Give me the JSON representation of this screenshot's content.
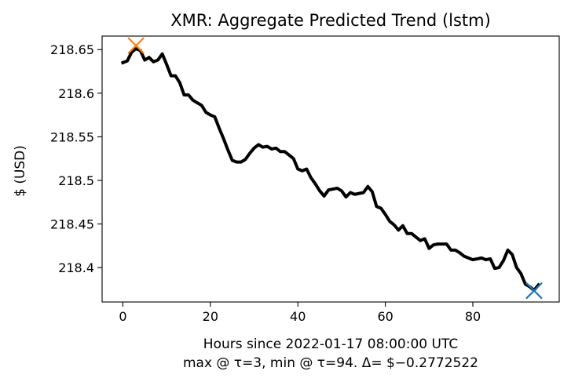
{
  "chart_data": {
    "type": "line",
    "title": "XMR: Aggregate Predicted Trend (lstm)",
    "xlabel": "Hours since 2022-01-17 08:00:00 UTC",
    "xlabel2": "max @ τ=3, min @ τ=94. Δ= $−0.2772522",
    "ylabel": "$ (USD)",
    "xlim": [
      -4.75,
      99.75
    ],
    "ylim": [
      218.3605,
      218.6655
    ],
    "xticks": [
      0,
      20,
      40,
      60,
      80
    ],
    "xtick_labels": [
      "0",
      "20",
      "40",
      "60",
      "80"
    ],
    "yticks": [
      218.4,
      218.45,
      218.5,
      218.55,
      218.6,
      218.65
    ],
    "ytick_labels": [
      "218.4",
      "218.45",
      "218.5",
      "218.55",
      "218.6",
      "218.65"
    ],
    "series": [
      {
        "color": "#000000",
        "x": [
          0,
          1,
          2,
          3,
          4,
          5,
          6,
          7,
          8,
          9,
          10,
          11,
          12,
          13,
          14,
          15,
          16,
          17,
          18,
          19,
          20,
          21,
          22,
          23,
          24,
          25,
          26,
          27,
          28,
          29,
          30,
          31,
          32,
          33,
          34,
          35,
          36,
          37,
          38,
          39,
          40,
          41,
          42,
          43,
          44,
          45,
          46,
          47,
          48,
          49,
          50,
          51,
          52,
          53,
          54,
          55,
          56,
          57,
          58,
          59,
          60,
          61,
          62,
          63,
          64,
          65,
          66,
          67,
          68,
          69,
          70,
          71,
          72,
          73,
          74,
          75,
          76,
          77,
          78,
          79,
          80,
          81,
          82,
          83,
          84,
          85,
          86,
          87,
          88,
          89,
          90,
          91,
          92,
          93,
          94,
          95
        ],
        "y": [
          218.635,
          218.637,
          218.647,
          218.651,
          218.649,
          218.638,
          218.641,
          218.636,
          218.638,
          218.645,
          218.633,
          218.62,
          218.62,
          218.612,
          218.598,
          218.598,
          218.592,
          218.589,
          218.586,
          218.578,
          218.575,
          218.573,
          218.56,
          218.548,
          218.535,
          218.523,
          218.521,
          218.521,
          218.524,
          218.531,
          218.537,
          218.541,
          218.538,
          218.539,
          218.536,
          218.537,
          218.533,
          218.533,
          218.529,
          218.525,
          218.513,
          218.511,
          218.513,
          218.503,
          218.496,
          218.488,
          218.482,
          218.489,
          218.49,
          218.491,
          218.488,
          218.481,
          218.486,
          218.484,
          218.485,
          218.486,
          218.493,
          218.487,
          218.47,
          218.468,
          218.461,
          218.453,
          218.449,
          218.443,
          218.448,
          218.439,
          218.439,
          218.435,
          218.431,
          218.433,
          218.422,
          218.426,
          218.427,
          218.427,
          218.427,
          218.42,
          218.42,
          218.417,
          218.413,
          218.411,
          218.409,
          218.41,
          218.411,
          218.409,
          218.41,
          218.399,
          218.4,
          218.408,
          218.42,
          218.415,
          218.4,
          218.393,
          218.381,
          218.378,
          218.374,
          218.38
        ]
      }
    ],
    "markers": [
      {
        "label": "max",
        "x": 3,
        "y": 218.6546,
        "symbol": "x",
        "color": "#ff7f0e"
      },
      {
        "label": "min",
        "x": 94,
        "y": 218.3735,
        "symbol": "x",
        "color": "#1f77b4"
      }
    ],
    "grid": false,
    "legend": "none"
  }
}
